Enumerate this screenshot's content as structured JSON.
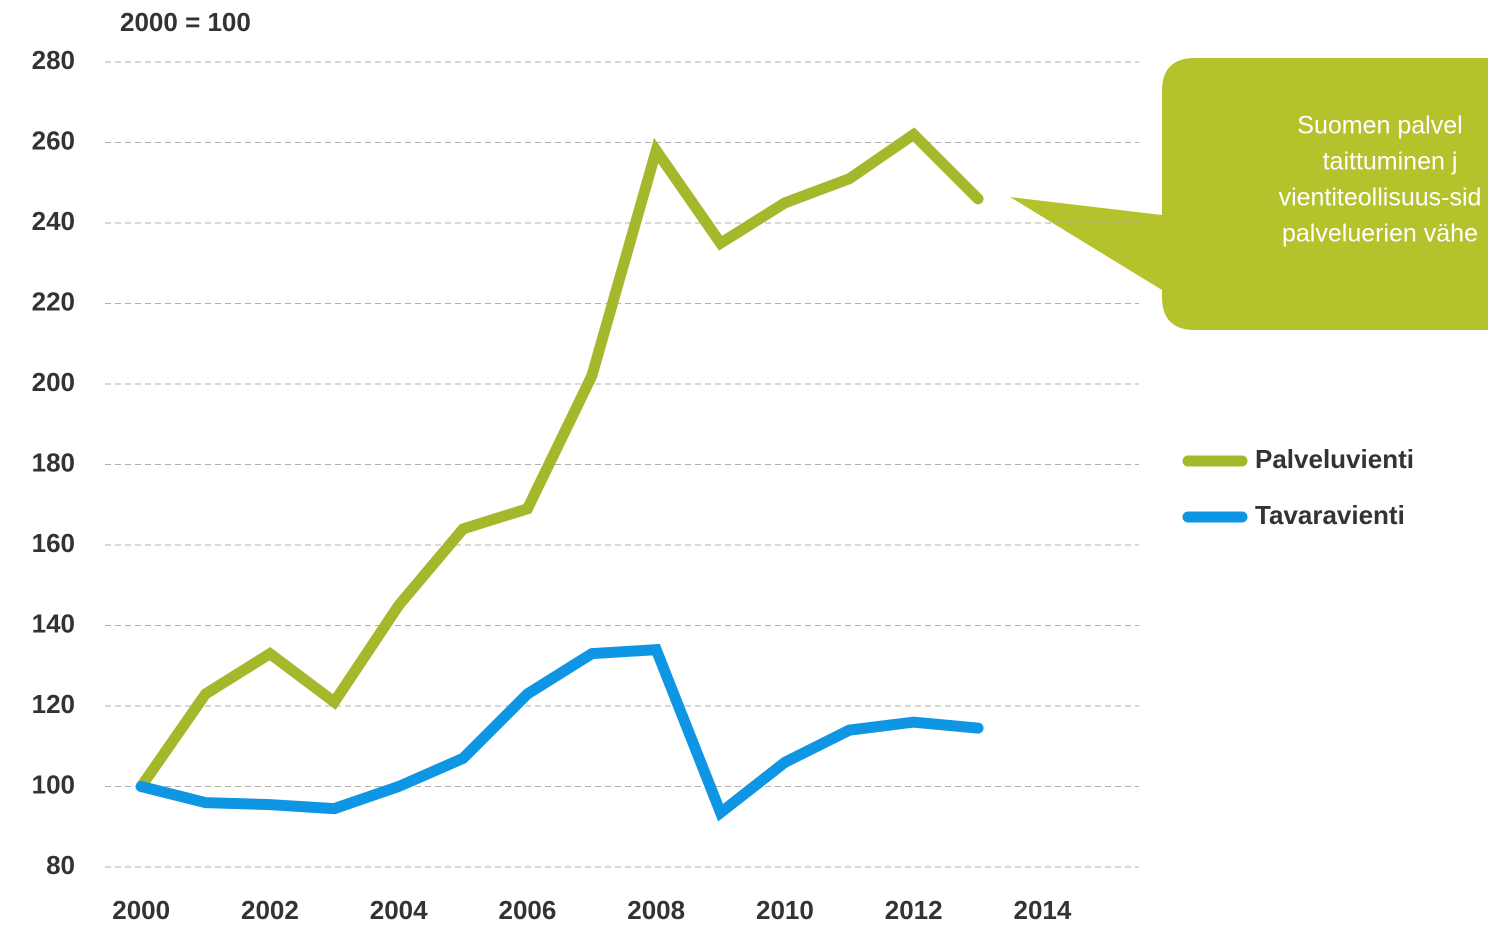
{
  "chart_data": {
    "type": "line",
    "y_unit_label": "2000 = 100",
    "x": [
      2000,
      2001,
      2002,
      2003,
      2004,
      2005,
      2006,
      2007,
      2008,
      2009,
      2010,
      2011,
      2012,
      2013
    ],
    "series": [
      {
        "name": "Palveluvienti",
        "color": "#a5b82c",
        "values": [
          100,
          123,
          133,
          121,
          145,
          164,
          169,
          202,
          258,
          235,
          245,
          251,
          262,
          246
        ]
      },
      {
        "name": "Tavaravienti",
        "color": "#0e96e4",
        "values": [
          100,
          96,
          95.5,
          94.5,
          100,
          107,
          123,
          133,
          134,
          93.5,
          106,
          114,
          116,
          114.5
        ]
      }
    ],
    "xlim": [
      1999.5,
      2015.5
    ],
    "xticks": [
      2000,
      2002,
      2004,
      2006,
      2008,
      2010,
      2012,
      2014
    ],
    "ylim": [
      80,
      280
    ],
    "yticks": [
      80,
      100,
      120,
      140,
      160,
      180,
      200,
      220,
      240,
      260,
      280
    ],
    "grid": true,
    "legend": "right",
    "annotation": [
      "Suomen palvel",
      "taittuminen j",
      "vientiteollisuus-sid",
      "palveluerien vähe"
    ]
  }
}
